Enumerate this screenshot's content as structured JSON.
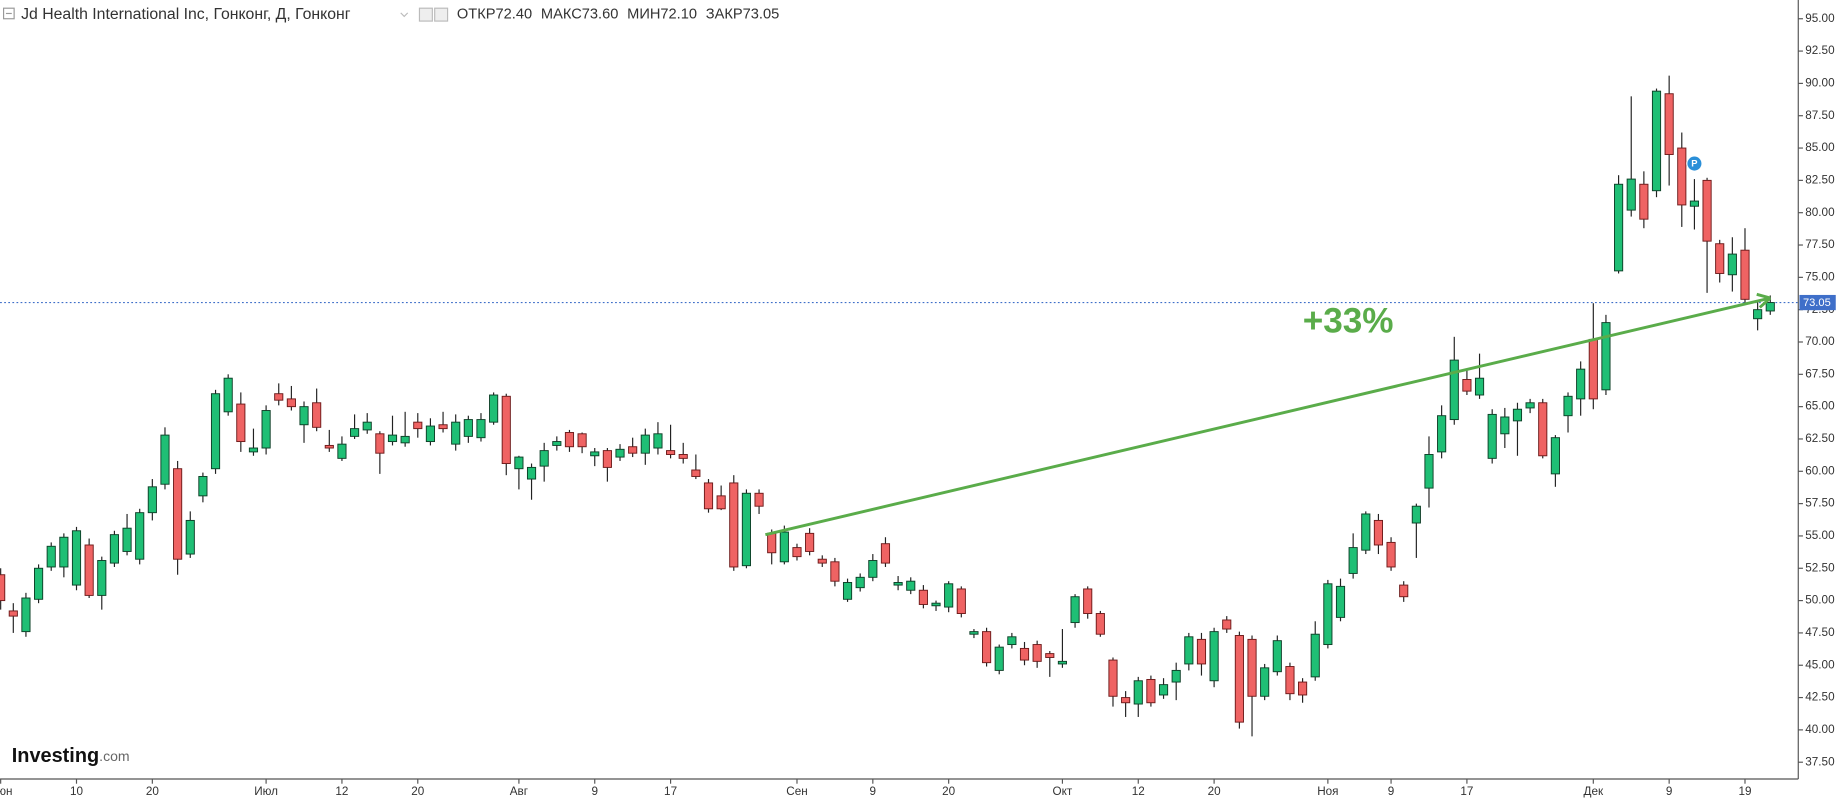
{
  "chart_data": {
    "type": "candlestick",
    "title": "Jd Health International Inc, Гонконг, Д, Гонконг",
    "ohlc_header": [
      {
        "label": "ОТКР",
        "value": "72.40"
      },
      {
        "label": "МАКС",
        "value": "73.60"
      },
      {
        "label": "МИН",
        "value": "72.10"
      },
      {
        "label": "ЗАКР",
        "value": "73.05"
      }
    ],
    "categories": [
      "Июн",
      null,
      null,
      null,
      null,
      null,
      "10",
      null,
      null,
      null,
      null,
      null,
      "20",
      null,
      null,
      null,
      null,
      null,
      null,
      null,
      null,
      "Июл",
      null,
      null,
      null,
      null,
      null,
      "12",
      null,
      null,
      null,
      null,
      null,
      "20",
      null,
      null,
      null,
      null,
      null,
      null,
      null,
      "Авг",
      null,
      null,
      null,
      null,
      null,
      "9",
      null,
      null,
      null,
      null,
      null,
      "17",
      null,
      null,
      null,
      null,
      null,
      null,
      null,
      null,
      null,
      "Сен",
      null,
      null,
      null,
      null,
      null,
      "9",
      null,
      null,
      null,
      null,
      null,
      "20",
      null,
      null,
      null,
      null,
      null,
      null,
      null,
      null,
      "Окт",
      null,
      null,
      null,
      null,
      null,
      "12",
      null,
      null,
      null,
      null,
      null,
      "20",
      null,
      null,
      null,
      null,
      null,
      null,
      null,
      null,
      "Ноя",
      null,
      null,
      null,
      null,
      "9",
      null,
      null,
      null,
      null,
      null,
      "17",
      null,
      null,
      null,
      null,
      null,
      null,
      null,
      null,
      null,
      "Дек",
      null,
      null,
      null,
      null,
      null,
      "9",
      null,
      null,
      null,
      null,
      null,
      "19",
      null,
      null
    ],
    "open": [
      52.0,
      49.2,
      47.6,
      50.1,
      52.6,
      52.6,
      51.2,
      54.3,
      50.4,
      52.9,
      53.8,
      53.2,
      56.8,
      59.0,
      60.2,
      53.6,
      58.1,
      60.2,
      64.6,
      65.2,
      61.5,
      61.8,
      66.0,
      65.6,
      63.6,
      65.3,
      62.0,
      61.0,
      62.7,
      63.2,
      62.9,
      62.3,
      62.2,
      63.8,
      62.3,
      63.6,
      62.1,
      62.7,
      62.6,
      63.8,
      65.8,
      60.2,
      59.4,
      60.4,
      62.0,
      63.0,
      62.9,
      61.2,
      61.6,
      61.1,
      61.9,
      61.4,
      61.8,
      61.6,
      61.3,
      60.1,
      59.1,
      58.1,
      59.1,
      52.7,
      58.3,
      55.2,
      53.0,
      54.1,
      55.2,
      53.2,
      53.0,
      50.1,
      51.0,
      51.8,
      54.4,
      51.2,
      50.8,
      50.8,
      49.6,
      49.5,
      50.9,
      47.4,
      47.6,
      44.6,
      46.6,
      46.3,
      46.6,
      45.9,
      45.1,
      48.3,
      50.9,
      49.0,
      45.4,
      42.5,
      42.0,
      43.9,
      42.7,
      43.7,
      45.1,
      47.0,
      43.8,
      48.5,
      47.3,
      47.0,
      42.6,
      44.5,
      44.9,
      43.7,
      44.1,
      46.6,
      48.7,
      52.1,
      53.9,
      56.2,
      54.5,
      51.2,
      56.0,
      58.7,
      61.5,
      64.0,
      67.1,
      65.9,
      61.0,
      62.9,
      63.9,
      64.9,
      65.3,
      59.8,
      64.3,
      65.6,
      70.2,
      66.3,
      75.5,
      80.2,
      82.2,
      81.7,
      89.2,
      85.0,
      80.5,
      82.5,
      77.6,
      75.2,
      77.1,
      71.8,
      72.4
    ],
    "high": [
      52.5,
      49.8,
      50.6,
      52.8,
      54.5,
      55.2,
      55.7,
      54.8,
      53.4,
      55.4,
      56.7,
      57.1,
      59.4,
      63.4,
      60.8,
      56.9,
      59.9,
      66.3,
      67.5,
      66.1,
      63.3,
      65.1,
      66.8,
      66.6,
      65.4,
      66.4,
      63.2,
      62.7,
      64.4,
      64.5,
      63.1,
      64.3,
      64.6,
      64.5,
      64.1,
      64.6,
      64.4,
      64.3,
      64.5,
      66.1,
      66.0,
      61.2,
      60.6,
      62.2,
      62.7,
      63.2,
      63.0,
      61.8,
      61.8,
      62.1,
      62.6,
      63.3,
      63.8,
      63.6,
      62.2,
      61.3,
      59.4,
      58.9,
      59.7,
      58.6,
      58.6,
      55.5,
      55.8,
      54.4,
      55.6,
      53.5,
      53.3,
      51.7,
      52.1,
      53.6,
      54.9,
      51.9,
      51.8,
      51.2,
      50.0,
      51.5,
      51.1,
      47.8,
      47.9,
      46.6,
      47.5,
      46.8,
      46.9,
      46.1,
      47.8,
      50.5,
      51.1,
      49.2,
      45.6,
      43.0,
      44.1,
      44.2,
      44.0,
      45.2,
      47.5,
      47.5,
      47.9,
      48.8,
      47.6,
      47.3,
      45.1,
      47.3,
      45.2,
      44.0,
      48.4,
      51.6,
      51.7,
      55.2,
      56.9,
      56.7,
      54.9,
      51.5,
      57.5,
      62.7,
      65.1,
      70.4,
      67.8,
      69.1,
      64.8,
      64.9,
      65.3,
      65.6,
      65.6,
      62.8,
      66.1,
      68.5,
      73.0,
      72.1,
      82.9,
      89.0,
      83.2,
      89.6,
      90.6,
      86.2,
      82.6,
      82.7,
      77.9,
      78.1,
      78.8,
      73.1,
      73.6
    ],
    "low": [
      49.3,
      47.5,
      47.2,
      49.8,
      52.3,
      51.8,
      50.8,
      50.2,
      49.3,
      52.6,
      53.5,
      52.8,
      56.2,
      58.6,
      52.0,
      53.3,
      57.6,
      59.8,
      64.3,
      61.5,
      61.2,
      61.3,
      65.1,
      64.7,
      62.2,
      63.1,
      61.5,
      60.8,
      62.5,
      62.9,
      59.8,
      62.0,
      61.9,
      62.6,
      62.0,
      63.0,
      61.6,
      62.2,
      62.3,
      63.6,
      59.7,
      58.6,
      57.8,
      59.2,
      61.6,
      61.5,
      61.4,
      60.4,
      59.2,
      60.8,
      61.1,
      60.5,
      61.3,
      61.0,
      60.6,
      59.4,
      56.8,
      57.0,
      52.3,
      52.5,
      56.7,
      52.8,
      52.8,
      53.1,
      53.5,
      52.6,
      51.1,
      49.9,
      50.7,
      51.5,
      52.6,
      50.8,
      50.5,
      49.4,
      49.2,
      49.1,
      48.7,
      47.1,
      44.9,
      44.3,
      46.3,
      45.0,
      44.8,
      44.1,
      44.8,
      47.9,
      48.6,
      47.2,
      41.8,
      41.0,
      41.0,
      41.8,
      42.4,
      42.3,
      44.6,
      44.2,
      43.3,
      47.5,
      40.1,
      39.5,
      42.3,
      44.2,
      42.3,
      42.1,
      43.8,
      46.3,
      48.4,
      51.7,
      53.6,
      53.6,
      52.3,
      49.9,
      53.3,
      57.2,
      61.0,
      63.6,
      65.9,
      65.6,
      60.6,
      61.8,
      61.2,
      64.5,
      61.0,
      58.8,
      63.0,
      64.3,
      64.8,
      65.9,
      75.3,
      79.7,
      78.8,
      81.2,
      82.1,
      78.9,
      78.7,
      73.8,
      74.6,
      73.9,
      73.0,
      70.9,
      72.1
    ],
    "close": [
      50.0,
      48.8,
      50.2,
      52.5,
      54.2,
      54.9,
      55.4,
      50.4,
      53.1,
      55.1,
      55.6,
      56.8,
      58.8,
      62.8,
      53.2,
      56.2,
      59.6,
      66.0,
      67.2,
      62.3,
      61.8,
      64.7,
      65.5,
      65.0,
      65.0,
      63.4,
      61.8,
      62.1,
      63.3,
      63.8,
      61.4,
      62.8,
      62.7,
      63.3,
      63.5,
      63.3,
      63.8,
      64.0,
      64.0,
      65.9,
      60.6,
      61.1,
      60.3,
      61.6,
      62.3,
      61.9,
      61.9,
      61.5,
      60.3,
      61.7,
      61.4,
      62.8,
      62.9,
      61.3,
      61.0,
      59.6,
      57.1,
      57.1,
      52.6,
      58.3,
      57.3,
      53.7,
      55.3,
      53.4,
      53.8,
      52.9,
      51.5,
      51.4,
      51.8,
      53.1,
      52.9,
      51.4,
      51.5,
      49.7,
      49.8,
      51.3,
      49.0,
      47.6,
      45.2,
      46.4,
      47.2,
      45.4,
      45.3,
      45.6,
      45.3,
      50.3,
      49.0,
      47.4,
      42.6,
      42.1,
      43.8,
      42.1,
      43.5,
      44.6,
      47.2,
      45.1,
      47.6,
      47.8,
      40.6,
      42.6,
      44.8,
      46.9,
      42.8,
      42.7,
      47.4,
      51.3,
      51.1,
      54.1,
      56.7,
      54.3,
      52.6,
      50.3,
      57.3,
      61.3,
      64.3,
      68.6,
      66.2,
      67.2,
      64.4,
      64.2,
      64.8,
      65.3,
      61.2,
      62.6,
      65.8,
      67.9,
      65.6,
      71.5,
      82.2,
      82.6,
      79.5,
      89.4,
      84.5,
      80.6,
      80.9,
      77.8,
      75.3,
      76.8,
      73.3,
      72.5,
      73.05
    ],
    "up_color": "#1fbf75",
    "down_color": "#ef6363",
    "ylim": [
      36.2,
      96.45
    ],
    "yticks": [
      {
        "value": 37.5,
        "label": "37.50"
      },
      {
        "value": 40,
        "label": "40.00"
      },
      {
        "value": 42.5,
        "label": "42.50"
      },
      {
        "value": 45,
        "label": "45.00"
      },
      {
        "value": 47.5,
        "label": "47.50"
      },
      {
        "value": 50,
        "label": "50.00"
      },
      {
        "value": 52.5,
        "label": "52.50"
      },
      {
        "value": 55,
        "label": "55.00"
      },
      {
        "value": 57.5,
        "label": "57.50"
      },
      {
        "value": 60,
        "label": "60.00"
      },
      {
        "value": 62.5,
        "label": "62.50"
      },
      {
        "value": 65,
        "label": "65.00"
      },
      {
        "value": 67.5,
        "label": "67.50"
      },
      {
        "value": 70,
        "label": "70.00"
      },
      {
        "value": 72.5,
        "label": "72.50"
      },
      {
        "value": 75,
        "label": "75.00"
      },
      {
        "value": 77.5,
        "label": "77.50"
      },
      {
        "value": 80,
        "label": "80.00"
      },
      {
        "value": 82.5,
        "label": "82.50"
      },
      {
        "value": 85,
        "label": "85.00"
      },
      {
        "value": 87.5,
        "label": "87.50"
      },
      {
        "value": 90,
        "label": "90.00"
      },
      {
        "value": 92.5,
        "label": "92.50"
      },
      {
        "value": 95,
        "label": "95.00"
      }
    ],
    "grid": false,
    "last_price": {
      "value": 73.05,
      "label": "73.05",
      "color": "#3f6fc9"
    },
    "annotation": {
      "text": "+33%",
      "color": "#5aac4a",
      "x": [
        60.5,
        140
      ],
      "y": [
        55.1,
        73.4
      ]
    },
    "marker": {
      "label": "P",
      "x": 134,
      "y": 83.8,
      "color": "#2a8fd8"
    },
    "branding": {
      "name": "Investing",
      "suffix": ".com"
    }
  }
}
